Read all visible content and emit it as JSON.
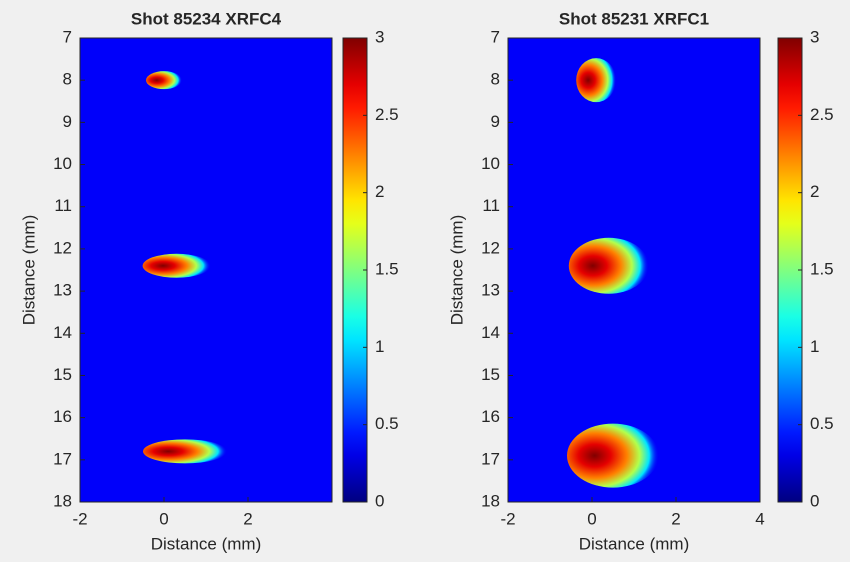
{
  "chart_data": [
    {
      "type": "heatmap",
      "title": "Shot 85234 XRFC4",
      "xlabel": "Distance (mm)",
      "ylabel": "Distance (mm)",
      "xlim": [
        -2,
        4
      ],
      "ylim": [
        18,
        7
      ],
      "xticks": [
        -2,
        0,
        2
      ],
      "yticks": [
        7,
        8,
        9,
        10,
        11,
        12,
        13,
        14,
        15,
        16,
        17,
        18
      ],
      "clim": [
        0,
        3
      ],
      "cticks": [
        0,
        0.5,
        1,
        1.5,
        2,
        2.5,
        3
      ],
      "colormap": "jet",
      "x": [
        0,
        0.3,
        0.5
      ],
      "y": [
        8,
        12.4,
        16.8
      ],
      "values": [
        3,
        3,
        3
      ]
    },
    {
      "type": "heatmap",
      "title": "Shot 85231 XRFC1",
      "xlabel": "Distance (mm)",
      "ylabel": "Distance (mm)",
      "xlim": [
        -2,
        4
      ],
      "ylim": [
        18,
        7
      ],
      "xticks": [
        -2,
        0,
        2,
        4
      ],
      "yticks": [
        7,
        8,
        9,
        10,
        11,
        12,
        13,
        14,
        15,
        16,
        17,
        18
      ],
      "clim": [
        0,
        3
      ],
      "cticks": [
        0,
        0.5,
        1,
        1.5,
        2,
        2.5,
        3
      ],
      "colormap": "jet",
      "x": [
        0.1,
        0.4,
        0.5
      ],
      "y": [
        8,
        12.4,
        16.9
      ],
      "values": [
        3,
        3,
        3
      ]
    }
  ]
}
